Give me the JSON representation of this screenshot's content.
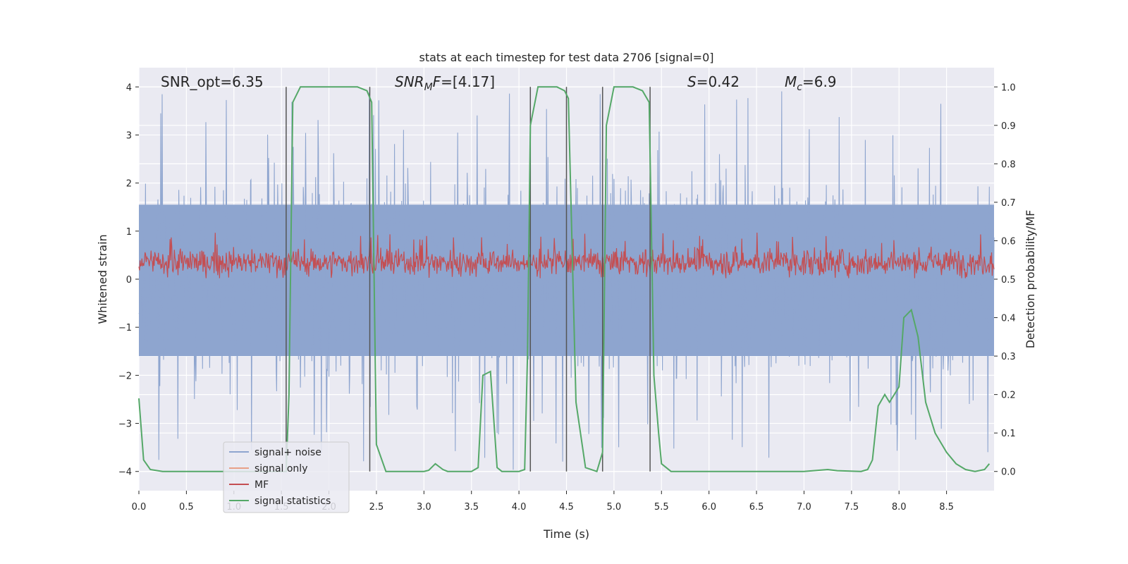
{
  "chart_data": {
    "type": "line",
    "title": "stats at each timestep for test data 2706 [signal=0]",
    "xlabel": "Time (s)",
    "ylabel": "Whitened strain",
    "y2label": "Detection probability/MF",
    "xlim": [
      0.0,
      9.0
    ],
    "ylim": [
      -4.4,
      4.4
    ],
    "y2lim": [
      -0.05,
      1.05
    ],
    "xticks": [
      0.0,
      0.5,
      1.0,
      1.5,
      2.0,
      2.5,
      3.0,
      3.5,
      4.0,
      4.5,
      5.0,
      5.5,
      6.0,
      6.5,
      7.0,
      7.5,
      8.0,
      8.5
    ],
    "xtick_labels": [
      "0.0",
      "0.5",
      "1.0",
      "1.5",
      "2.0",
      "2.5",
      "3.0",
      "3.5",
      "4.0",
      "4.5",
      "5.0",
      "5.5",
      "6.0",
      "6.5",
      "7.0",
      "7.5",
      "8.0",
      "8.5"
    ],
    "yticks": [
      4,
      3,
      2,
      1,
      0,
      -1,
      -2,
      -3,
      -4
    ],
    "ytick_labels": [
      "4",
      "3",
      "2",
      "1",
      "0",
      "−1",
      "−2",
      "−3",
      "−4"
    ],
    "y2ticks": [
      1.0,
      0.9,
      0.8,
      0.7,
      0.6,
      0.5,
      0.4,
      0.3,
      0.2,
      0.1,
      0.0
    ],
    "y2tick_labels": [
      "1.0",
      "0.9",
      "0.8",
      "0.7",
      "0.6",
      "0.5",
      "0.4",
      "0.3",
      "0.2",
      "0.1",
      "0.0"
    ],
    "annotations": {
      "snr_opt": "SNR_opt=6.35",
      "snr_mf": "=[4.17]",
      "snr_mf_symbol": "SNR",
      "snr_mf_sub": "M",
      "snr_mf_tail": "F",
      "s_value": "=0.42",
      "s_symbol": "S",
      "mc_value": "=6.9",
      "mc_symbol": "M",
      "mc_sub": "c"
    },
    "series": [
      {
        "name": "signal+ noise",
        "color": "#8ea5cf",
        "description_kind": "noise",
        "amplitude_typical": 1.4,
        "amplitude_peak": 4.0
      },
      {
        "name": "signal only",
        "color": "#e8a087",
        "values": []
      },
      {
        "name": "MF",
        "color": "#c44e52",
        "axis": "y",
        "mean": 0.35,
        "range": [
          0.0,
          1.0
        ]
      },
      {
        "name": "signal statistics",
        "color": "#55a868",
        "axis": "y2",
        "x": [
          0.0,
          0.05,
          0.12,
          0.25,
          0.5,
          1.0,
          1.5,
          1.55,
          1.58,
          1.62,
          1.7,
          2.0,
          2.3,
          2.4,
          2.45,
          2.5,
          2.6,
          2.8,
          3.0,
          3.05,
          3.12,
          3.2,
          3.25,
          3.5,
          3.57,
          3.62,
          3.7,
          3.77,
          3.82,
          4.0,
          4.06,
          4.09,
          4.12,
          4.2,
          4.4,
          4.48,
          4.52,
          4.6,
          4.7,
          4.82,
          4.88,
          4.92,
          5.0,
          5.2,
          5.3,
          5.37,
          5.42,
          5.47,
          5.5,
          5.6,
          6.0,
          6.5,
          7.0,
          7.1,
          7.25,
          7.35,
          7.6,
          7.67,
          7.72,
          7.78,
          7.85,
          7.9,
          8.0,
          8.05,
          8.13,
          8.2,
          8.28,
          8.38,
          8.5,
          8.6,
          8.7,
          8.8,
          8.9,
          8.95
        ],
        "values": [
          0.19,
          0.03,
          0.005,
          0.0,
          0.0,
          0.0,
          0.0,
          0.0,
          0.2,
          0.96,
          1.0,
          1.0,
          1.0,
          0.99,
          0.96,
          0.07,
          0.0,
          0.0,
          0.0,
          0.003,
          0.02,
          0.005,
          0.0,
          0.0,
          0.01,
          0.25,
          0.26,
          0.01,
          0.0,
          0.0,
          0.005,
          0.3,
          0.9,
          1.0,
          1.0,
          0.99,
          0.97,
          0.18,
          0.01,
          0.0,
          0.05,
          0.9,
          1.0,
          1.0,
          0.99,
          0.96,
          0.25,
          0.1,
          0.02,
          0.0,
          0.0,
          0.0,
          0.0,
          0.002,
          0.005,
          0.002,
          0.0,
          0.005,
          0.03,
          0.17,
          0.2,
          0.18,
          0.22,
          0.4,
          0.42,
          0.35,
          0.18,
          0.1,
          0.05,
          0.02,
          0.005,
          0.0,
          0.005,
          0.02
        ]
      }
    ],
    "vlines_x": [
      1.55,
      2.43,
      4.12,
      4.5,
      4.88,
      5.38
    ],
    "vline_color": "#555555",
    "legend_position": "lower-left",
    "background_color": "#eaeaf2",
    "grid_color": "#ffffff"
  }
}
